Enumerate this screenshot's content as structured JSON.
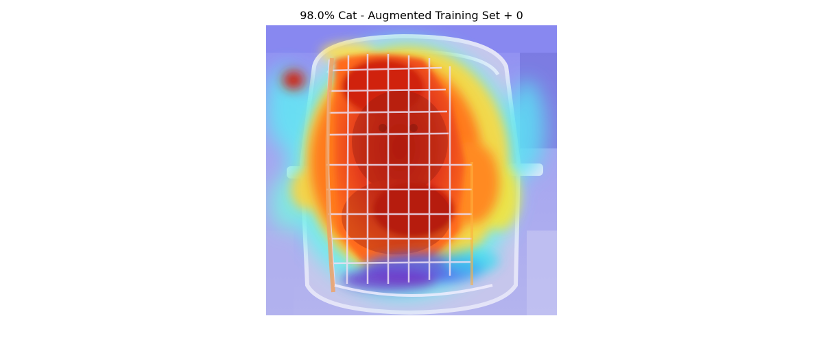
{
  "figure": {
    "title": "98.0% Cat - Augmented Training Set + 0"
  },
  "image": {
    "subject": "cat-in-pet-carrier",
    "overlay": "saliency-heatmap",
    "colors": {
      "background_tint": "#9c9cf0",
      "carrier_shell": "#c8c8ee",
      "heat_hot": "#d42a10",
      "heat_warm": "#ff7a20",
      "heat_mid": "#ffd63a",
      "heat_cool": "#5cf2f2",
      "heat_cold": "#5a4cf0",
      "grid_wire": "#e8dcf4"
    }
  }
}
